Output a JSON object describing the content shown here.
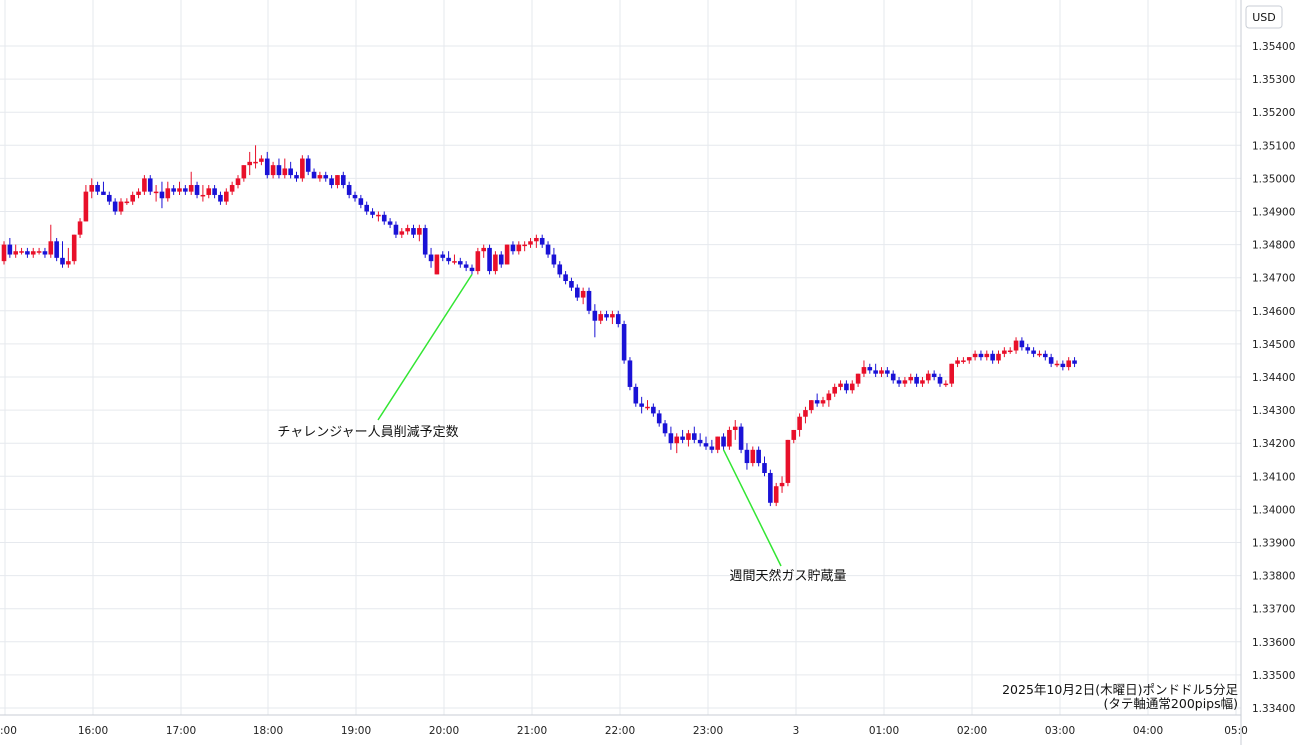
{
  "currency_label": "USD",
  "caption_line1": "2025年10月2日(木曜日)ポンドドル5分足",
  "caption_line2": "(タテ軸通常200pips幅)",
  "colors": {
    "up": "#e8102a",
    "down": "#1a12d6",
    "grid": "#e6e9ee",
    "annotation_line": "#33e633"
  },
  "chart_data": {
    "type": "candlestick",
    "ylim": [
      1.3335,
      1.355
    ],
    "y_ticks": [
      "1.35400",
      "1.35300",
      "1.35200",
      "1.35100",
      "1.35000",
      "1.34900",
      "1.34800",
      "1.34700",
      "1.34600",
      "1.34500",
      "1.34400",
      "1.34300",
      "1.34200",
      "1.34100",
      "1.34000",
      "1.33900",
      "1.33800",
      "1.33700",
      "1.33600",
      "1.33500",
      "1.33400"
    ],
    "x_ticks": [
      ":00",
      "16:00",
      "17:00",
      "18:00",
      "19:00",
      "20:00",
      "21:00",
      "22:00",
      "23:00",
      "3",
      "01:00",
      "02:00",
      "03:00",
      "04:00",
      "05:0"
    ],
    "annotations": [
      {
        "text": "チャレンジャー人員削減予定数",
        "candle_index": 80
      },
      {
        "text": "週間天然ガス貯蔵量",
        "candle_index": 123
      }
    ],
    "candles": [
      [
        1.3475,
        1.3481,
        1.3474,
        1.348
      ],
      [
        1.348,
        1.3482,
        1.3476,
        1.3477
      ],
      [
        1.3477,
        1.348,
        1.3476,
        1.3478
      ],
      [
        1.3478,
        1.3479,
        1.3477,
        1.3478
      ],
      [
        1.3478,
        1.3479,
        1.3476,
        1.3477
      ],
      [
        1.3477,
        1.3479,
        1.3476,
        1.3478
      ],
      [
        1.3478,
        1.3479,
        1.3477,
        1.3478
      ],
      [
        1.3478,
        1.3479,
        1.3476,
        1.3477
      ],
      [
        1.3477,
        1.3486,
        1.3476,
        1.3481
      ],
      [
        1.3481,
        1.3482,
        1.3475,
        1.3476
      ],
      [
        1.3476,
        1.3481,
        1.3473,
        1.3474
      ],
      [
        1.3474,
        1.3479,
        1.3473,
        1.3475
      ],
      [
        1.3475,
        1.3483,
        1.3474,
        1.3483
      ],
      [
        1.3483,
        1.3488,
        1.3482,
        1.3487
      ],
      [
        1.3487,
        1.3498,
        1.3487,
        1.3496
      ],
      [
        1.3496,
        1.35,
        1.3494,
        1.3498
      ],
      [
        1.3498,
        1.3499,
        1.3495,
        1.3496
      ],
      [
        1.3496,
        1.3499,
        1.3495,
        1.3495
      ],
      [
        1.3495,
        1.3496,
        1.3492,
        1.3493
      ],
      [
        1.3493,
        1.3494,
        1.3489,
        1.349
      ],
      [
        1.349,
        1.3494,
        1.3489,
        1.3493
      ],
      [
        1.3493,
        1.3494,
        1.3492,
        1.3493
      ],
      [
        1.3493,
        1.3496,
        1.3492,
        1.3495
      ],
      [
        1.3495,
        1.3497,
        1.3494,
        1.3496
      ],
      [
        1.3496,
        1.3501,
        1.3495,
        1.35
      ],
      [
        1.35,
        1.3501,
        1.3495,
        1.3496
      ],
      [
        1.3496,
        1.3498,
        1.3493,
        1.3496
      ],
      [
        1.3496,
        1.3499,
        1.3491,
        1.3494
      ],
      [
        1.3494,
        1.3499,
        1.3493,
        1.3497
      ],
      [
        1.3497,
        1.3498,
        1.3495,
        1.3496
      ],
      [
        1.3496,
        1.3499,
        1.3495,
        1.3497
      ],
      [
        1.3497,
        1.3498,
        1.3495,
        1.3496
      ],
      [
        1.3496,
        1.3502,
        1.3495,
        1.3498
      ],
      [
        1.3498,
        1.3499,
        1.3494,
        1.3495
      ],
      [
        1.3495,
        1.3498,
        1.3493,
        1.3495
      ],
      [
        1.3495,
        1.3498,
        1.3494,
        1.3497
      ],
      [
        1.3497,
        1.3498,
        1.3494,
        1.3495
      ],
      [
        1.3495,
        1.3496,
        1.3492,
        1.3493
      ],
      [
        1.3493,
        1.3497,
        1.3492,
        1.3496
      ],
      [
        1.3496,
        1.3499,
        1.3495,
        1.3498
      ],
      [
        1.3498,
        1.3501,
        1.3497,
        1.35
      ],
      [
        1.35,
        1.3504,
        1.3499,
        1.3504
      ],
      [
        1.3504,
        1.3508,
        1.3501,
        1.3505
      ],
      [
        1.3505,
        1.351,
        1.3503,
        1.3505
      ],
      [
        1.3505,
        1.3507,
        1.3504,
        1.3506
      ],
      [
        1.3506,
        1.3508,
        1.35,
        1.3501
      ],
      [
        1.3501,
        1.3505,
        1.35,
        1.3504
      ],
      [
        1.3504,
        1.3506,
        1.35,
        1.3501
      ],
      [
        1.3501,
        1.3506,
        1.35,
        1.3503
      ],
      [
        1.3503,
        1.3505,
        1.35,
        1.3501
      ],
      [
        1.3501,
        1.3502,
        1.3499,
        1.35
      ],
      [
        1.35,
        1.3507,
        1.3499,
        1.3506
      ],
      [
        1.3506,
        1.3507,
        1.3501,
        1.3502
      ],
      [
        1.3502,
        1.3503,
        1.35,
        1.35
      ],
      [
        1.35,
        1.3502,
        1.3499,
        1.3501
      ],
      [
        1.3501,
        1.3502,
        1.3499,
        1.35
      ],
      [
        1.35,
        1.3501,
        1.3497,
        1.3498
      ],
      [
        1.3498,
        1.3501,
        1.3497,
        1.3501
      ],
      [
        1.3501,
        1.3502,
        1.3497,
        1.3498
      ],
      [
        1.3498,
        1.3499,
        1.3494,
        1.3495
      ],
      [
        1.3495,
        1.3496,
        1.3493,
        1.3494
      ],
      [
        1.3494,
        1.3495,
        1.3491,
        1.3492
      ],
      [
        1.3492,
        1.3493,
        1.3489,
        1.349
      ],
      [
        1.349,
        1.3491,
        1.3488,
        1.3489
      ],
      [
        1.3489,
        1.349,
        1.3487,
        1.3489
      ],
      [
        1.3489,
        1.349,
        1.3486,
        1.3487
      ],
      [
        1.3487,
        1.3488,
        1.3485,
        1.3486
      ],
      [
        1.3486,
        1.3487,
        1.3482,
        1.3483
      ],
      [
        1.3483,
        1.3485,
        1.3482,
        1.3484
      ],
      [
        1.3484,
        1.3486,
        1.3483,
        1.3485
      ],
      [
        1.3485,
        1.3486,
        1.3482,
        1.3483
      ],
      [
        1.3483,
        1.3486,
        1.3481,
        1.3485
      ],
      [
        1.3485,
        1.3486,
        1.3476,
        1.3477
      ],
      [
        1.3477,
        1.3479,
        1.3473,
        1.3475
      ],
      [
        1.3471,
        1.3477,
        1.3471,
        1.3477
      ],
      [
        1.3477,
        1.3478,
        1.3475,
        1.3476
      ],
      [
        1.3476,
        1.3478,
        1.3474,
        1.3475
      ],
      [
        1.3475,
        1.3477,
        1.3474,
        1.3475
      ],
      [
        1.3475,
        1.3476,
        1.3473,
        1.3474
      ],
      [
        1.3474,
        1.3475,
        1.3472,
        1.3473
      ],
      [
        1.3473,
        1.3474,
        1.3471,
        1.3472
      ],
      [
        1.3472,
        1.3479,
        1.3471,
        1.3478
      ],
      [
        1.3478,
        1.348,
        1.3476,
        1.3479
      ],
      [
        1.3479,
        1.348,
        1.3471,
        1.3472
      ],
      [
        1.3472,
        1.3478,
        1.3471,
        1.3477
      ],
      [
        1.3477,
        1.3478,
        1.3473,
        1.3474
      ],
      [
        1.3474,
        1.348,
        1.3474,
        1.348
      ],
      [
        1.348,
        1.3481,
        1.3477,
        1.3478
      ],
      [
        1.3478,
        1.3481,
        1.3477,
        1.348
      ],
      [
        1.348,
        1.3481,
        1.3478,
        1.348
      ],
      [
        1.348,
        1.3482,
        1.3479,
        1.3481
      ],
      [
        1.3481,
        1.3483,
        1.3479,
        1.3482
      ],
      [
        1.3482,
        1.3483,
        1.3479,
        1.348
      ],
      [
        1.348,
        1.3481,
        1.3476,
        1.3477
      ],
      [
        1.3477,
        1.3479,
        1.3473,
        1.3474
      ],
      [
        1.3474,
        1.3475,
        1.347,
        1.3471
      ],
      [
        1.3471,
        1.3472,
        1.3468,
        1.3469
      ],
      [
        1.3469,
        1.347,
        1.3466,
        1.3467
      ],
      [
        1.3467,
        1.3468,
        1.3463,
        1.3464
      ],
      [
        1.3464,
        1.3467,
        1.3462,
        1.3466
      ],
      [
        1.3466,
        1.3467,
        1.3459,
        1.346
      ],
      [
        1.346,
        1.3462,
        1.3452,
        1.3457
      ],
      [
        1.3457,
        1.346,
        1.3456,
        1.3459
      ],
      [
        1.3459,
        1.346,
        1.3457,
        1.3458
      ],
      [
        1.3458,
        1.346,
        1.3456,
        1.3459
      ],
      [
        1.3459,
        1.346,
        1.3455,
        1.3456
      ],
      [
        1.3456,
        1.3457,
        1.3444,
        1.3445
      ],
      [
        1.3445,
        1.3446,
        1.3436,
        1.3437
      ],
      [
        1.3437,
        1.3438,
        1.3431,
        1.3432
      ],
      [
        1.3432,
        1.3434,
        1.3429,
        1.3431
      ],
      [
        1.3431,
        1.3433,
        1.343,
        1.3431
      ],
      [
        1.3431,
        1.3432,
        1.3428,
        1.3429
      ],
      [
        1.3429,
        1.343,
        1.3425,
        1.3426
      ],
      [
        1.3426,
        1.3427,
        1.3422,
        1.3423
      ],
      [
        1.3423,
        1.3425,
        1.3418,
        1.342
      ],
      [
        1.342,
        1.3423,
        1.3417,
        1.3422
      ],
      [
        1.3422,
        1.3424,
        1.342,
        1.3421
      ],
      [
        1.3421,
        1.3424,
        1.3419,
        1.3423
      ],
      [
        1.3423,
        1.3425,
        1.342,
        1.3421
      ],
      [
        1.3421,
        1.3423,
        1.3419,
        1.342
      ],
      [
        1.342,
        1.3422,
        1.3418,
        1.3419
      ],
      [
        1.3419,
        1.3421,
        1.3417,
        1.3418
      ],
      [
        1.3418,
        1.3422,
        1.3417,
        1.3422
      ],
      [
        1.3422,
        1.3423,
        1.3418,
        1.3419
      ],
      [
        1.3419,
        1.3425,
        1.3418,
        1.3424
      ],
      [
        1.3424,
        1.3427,
        1.3421,
        1.3425
      ],
      [
        1.3425,
        1.3426,
        1.3417,
        1.3418
      ],
      [
        1.3418,
        1.342,
        1.3412,
        1.3414
      ],
      [
        1.3414,
        1.3419,
        1.3413,
        1.3418
      ],
      [
        1.3418,
        1.3419,
        1.3413,
        1.3414
      ],
      [
        1.3414,
        1.3416,
        1.341,
        1.3411
      ],
      [
        1.3411,
        1.3412,
        1.3401,
        1.3402
      ],
      [
        1.3402,
        1.3408,
        1.3401,
        1.3407
      ],
      [
        1.3407,
        1.341,
        1.3405,
        1.3408
      ],
      [
        1.3408,
        1.3421,
        1.3407,
        1.3421
      ],
      [
        1.3421,
        1.3424,
        1.342,
        1.3424
      ],
      [
        1.3424,
        1.3429,
        1.3422,
        1.3428
      ],
      [
        1.3428,
        1.3431,
        1.3426,
        1.343
      ],
      [
        1.343,
        1.3433,
        1.3429,
        1.3433
      ],
      [
        1.3433,
        1.3435,
        1.3431,
        1.3432
      ],
      [
        1.3432,
        1.3434,
        1.3431,
        1.3433
      ],
      [
        1.3433,
        1.3436,
        1.3431,
        1.3435
      ],
      [
        1.3435,
        1.3438,
        1.3434,
        1.3437
      ],
      [
        1.3437,
        1.3439,
        1.3436,
        1.3438
      ],
      [
        1.3438,
        1.3439,
        1.3435,
        1.3436
      ],
      [
        1.3436,
        1.3439,
        1.3435,
        1.3438
      ],
      [
        1.3438,
        1.3441,
        1.3437,
        1.3441
      ],
      [
        1.3441,
        1.3445,
        1.344,
        1.3443
      ],
      [
        1.3443,
        1.3444,
        1.3441,
        1.3442
      ],
      [
        1.3442,
        1.3444,
        1.344,
        1.3441
      ],
      [
        1.3441,
        1.3443,
        1.344,
        1.3442
      ],
      [
        1.3442,
        1.3443,
        1.344,
        1.3441
      ],
      [
        1.3441,
        1.3442,
        1.3438,
        1.3439
      ],
      [
        1.3439,
        1.344,
        1.3437,
        1.3438
      ],
      [
        1.3438,
        1.344,
        1.3437,
        1.3439
      ],
      [
        1.3439,
        1.3441,
        1.3438,
        1.344
      ],
      [
        1.344,
        1.3441,
        1.3437,
        1.3438
      ],
      [
        1.3438,
        1.344,
        1.3437,
        1.3439
      ],
      [
        1.3439,
        1.3442,
        1.3438,
        1.3441
      ],
      [
        1.3441,
        1.3442,
        1.3439,
        1.344
      ],
      [
        1.344,
        1.3441,
        1.3437,
        1.3438
      ],
      [
        1.3438,
        1.3439,
        1.3437,
        1.3438
      ],
      [
        1.3438,
        1.3444,
        1.3437,
        1.3444
      ],
      [
        1.3444,
        1.3446,
        1.3443,
        1.3445
      ],
      [
        1.3445,
        1.3446,
        1.3444,
        1.3445
      ],
      [
        1.3445,
        1.3446,
        1.3444,
        1.3446
      ],
      [
        1.3446,
        1.3448,
        1.3445,
        1.3447
      ],
      [
        1.3447,
        1.3448,
        1.3445,
        1.3446
      ],
      [
        1.3446,
        1.3448,
        1.3445,
        1.3447
      ],
      [
        1.3447,
        1.3448,
        1.3444,
        1.3445
      ],
      [
        1.3445,
        1.3448,
        1.3444,
        1.3447
      ],
      [
        1.3447,
        1.3449,
        1.3446,
        1.3448
      ],
      [
        1.3448,
        1.3449,
        1.3447,
        1.3448
      ],
      [
        1.3448,
        1.3452,
        1.3447,
        1.3451
      ],
      [
        1.3451,
        1.3452,
        1.3448,
        1.3449
      ],
      [
        1.3449,
        1.345,
        1.3447,
        1.3448
      ],
      [
        1.3448,
        1.3449,
        1.3446,
        1.3447
      ],
      [
        1.3447,
        1.3448,
        1.3446,
        1.3447
      ],
      [
        1.3447,
        1.3448,
        1.3445,
        1.3446
      ],
      [
        1.3446,
        1.3447,
        1.3443,
        1.3444
      ],
      [
        1.3444,
        1.3445,
        1.3443,
        1.3444
      ],
      [
        1.3444,
        1.3445,
        1.3442,
        1.3443
      ],
      [
        1.3443,
        1.3446,
        1.3442,
        1.3445
      ],
      [
        1.3445,
        1.3446,
        1.3443,
        1.3444
      ]
    ]
  }
}
